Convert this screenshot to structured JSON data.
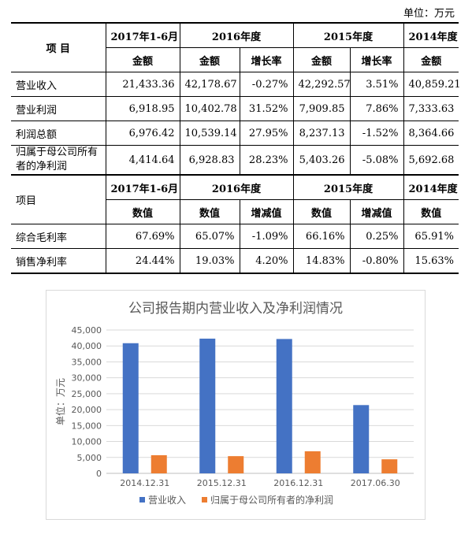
{
  "unit": "单位：万元",
  "table1": {
    "col_groups": [
      "2017年1-6月",
      "2016年度",
      "2015年度",
      "2014年度"
    ],
    "row_header": "项    目",
    "sub_headers": [
      "金额",
      "金额",
      "增长率",
      "金额",
      "增长率",
      "金额"
    ],
    "rows": [
      {
        "label": "营业收入",
        "values": [
          "21,433.36",
          "42,178.67",
          "-0.27%",
          "42,292.57",
          "3.51%",
          "40,859.21"
        ]
      },
      {
        "label": "营业利润",
        "values": [
          "6,918.95",
          "10,402.78",
          "31.52%",
          "7,909.85",
          "7.86%",
          "7,333.63"
        ]
      },
      {
        "label": "利润总额",
        "values": [
          "6,976.42",
          "10,539.14",
          "27.95%",
          "8,237.13",
          "-1.52%",
          "8,364.66"
        ]
      },
      {
        "label": "归属于母公司所有者的净利润",
        "values": [
          "4,414.64",
          "6,928.83",
          "28.23%",
          "5,403.26",
          "-5.08%",
          "5,692.68"
        ]
      }
    ]
  },
  "table2": {
    "col_groups": [
      "2017年1-6月",
      "2016年度",
      "2015年度",
      "2014年度"
    ],
    "row_header": "项目",
    "sub_headers": [
      "数值",
      "数值",
      "增减值",
      "数值",
      "增减值",
      "数值"
    ],
    "rows": [
      {
        "label": "综合毛利率",
        "values": [
          "67.69%",
          "65.07%",
          "-1.09%",
          "66.16%",
          "0.25%",
          "65.91%"
        ]
      },
      {
        "label": "销售净利率",
        "values": [
          "24.44%",
          "19.03%",
          "4.20%",
          "14.83%",
          "-0.80%",
          "15.63%"
        ]
      }
    ]
  },
  "chart_data": {
    "type": "bar",
    "title": "公司报告期内营业收入及净利润情况",
    "ylabel": "单位：万元",
    "xlabel": "",
    "categories": [
      "2014.12.31",
      "2015.12.31",
      "2016.12.31",
      "2017.06.30"
    ],
    "series": [
      {
        "name": "营业收入",
        "color": "#4472C4",
        "values": [
          40859.21,
          42292.57,
          42178.67,
          21433.36
        ]
      },
      {
        "name": "归属于母公司所有者的净利润",
        "color": "#ED7D31",
        "values": [
          5692.68,
          5403.26,
          6928.83,
          4414.64
        ]
      }
    ],
    "ylim": [
      0,
      45000
    ],
    "yticks": [
      "0",
      "5,000",
      "10,000",
      "15,000",
      "20,000",
      "25,000",
      "30,000",
      "35,000",
      "40,000",
      "45,000"
    ],
    "grid": true,
    "legend": "bottom"
  }
}
